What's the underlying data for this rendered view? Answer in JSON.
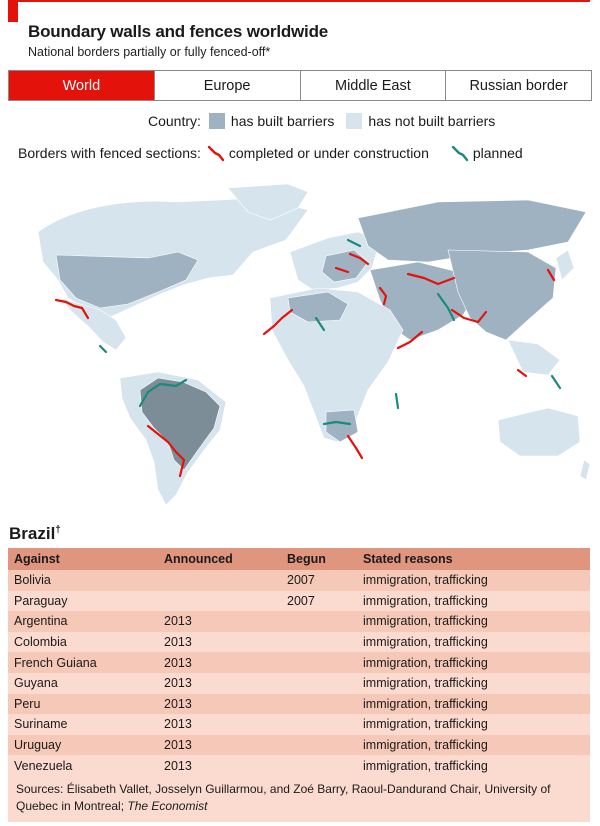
{
  "header": {
    "title": "Boundary walls and fences worldwide",
    "subtitle": "National borders partially or fully fenced-off*"
  },
  "tabs": [
    {
      "label": "World",
      "active": true
    },
    {
      "label": "Europe",
      "active": false
    },
    {
      "label": "Middle East",
      "active": false
    },
    {
      "label": "Russian border",
      "active": false
    }
  ],
  "legend": {
    "country_label": "Country:",
    "has_built": "has built barriers",
    "has_not_built": "has not built barriers",
    "borders_label": "Borders with fenced sections:",
    "completed": "completed or under construction",
    "planned": "planned"
  },
  "colors": {
    "accent": "#e3120b",
    "built": "#9fb2c1",
    "not_built": "#d6e4ee",
    "brazil": "#7c8d98",
    "completed_line": "#e3120b",
    "planned_line": "#1a8a7c",
    "table_header": "#e0957f",
    "table_row": "#f6c8b8"
  },
  "brazil": {
    "title": "Brazil",
    "footnote_mark": "†",
    "columns": [
      "Against",
      "Announced",
      "Begun",
      "Stated reasons"
    ],
    "rows": [
      {
        "against": "Bolivia",
        "announced": "",
        "begun": "2007",
        "reasons": "immigration, trafficking"
      },
      {
        "against": "Paraguay",
        "announced": "",
        "begun": "2007",
        "reasons": "immigration, trafficking"
      },
      {
        "against": "Argentina",
        "announced": "2013",
        "begun": "",
        "reasons": "immigration, trafficking"
      },
      {
        "against": "Colombia",
        "announced": "2013",
        "begun": "",
        "reasons": "immigration, trafficking"
      },
      {
        "against": "French Guiana",
        "announced": "2013",
        "begun": "",
        "reasons": "immigration, trafficking"
      },
      {
        "against": "Guyana",
        "announced": "2013",
        "begun": "",
        "reasons": "immigration, trafficking"
      },
      {
        "against": "Peru",
        "announced": "2013",
        "begun": "",
        "reasons": "immigration, trafficking"
      },
      {
        "against": "Suriname",
        "announced": "2013",
        "begun": "",
        "reasons": "immigration, trafficking"
      },
      {
        "against": "Uruguay",
        "announced": "2013",
        "begun": "",
        "reasons": "immigration, trafficking"
      },
      {
        "against": "Venezuela",
        "announced": "2013",
        "begun": "",
        "reasons": "immigration, trafficking"
      }
    ]
  },
  "sources": {
    "text": "Sources: Élisabeth Vallet, Josselyn Guillarmou, and Zoé Barry, Raoul-Dandurand Chair, University of Quebec in Montreal; ",
    "publication": "The Economist"
  }
}
